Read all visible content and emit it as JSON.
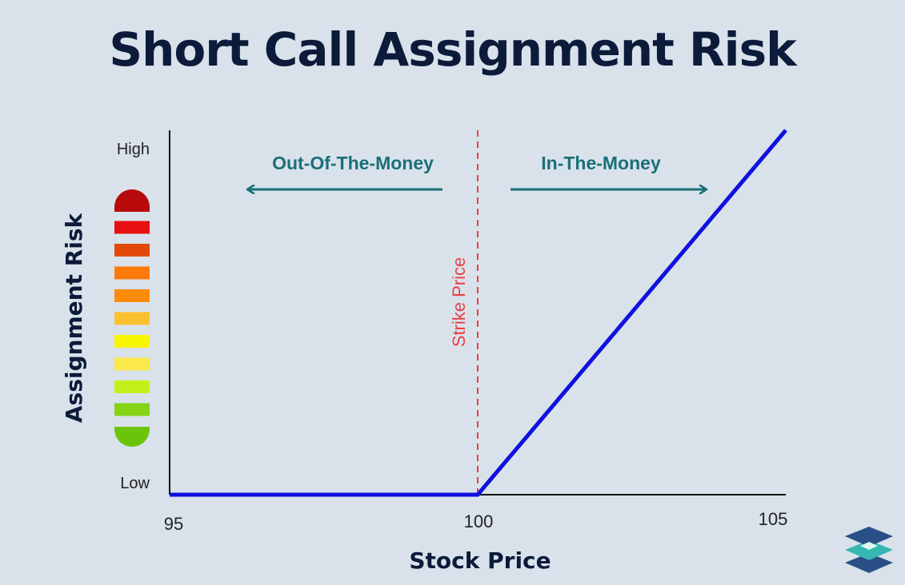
{
  "title": "Short Call Assignment Risk",
  "chart_data": {
    "type": "line",
    "title": "Short Call Assignment Risk",
    "xlabel": "Stock Price",
    "ylabel": "Assignment Risk",
    "xlim": [
      95,
      105
    ],
    "ylim": [
      0,
      1
    ],
    "x_ticks": [
      "95",
      "100",
      "105"
    ],
    "y_tick_labels": {
      "top": "High",
      "bottom": "Low"
    },
    "series": [
      {
        "points": [
          [
            95,
            0
          ],
          [
            100,
            0
          ],
          [
            105,
            1
          ]
        ],
        "color": "#1010e0"
      }
    ],
    "strike": {
      "x": 100,
      "label": "Strike Price",
      "color": "#e84040"
    },
    "annotations": [
      {
        "text": "Out-Of-The-Money",
        "direction": "left",
        "color": "#1b6f78"
      },
      {
        "text": "In-The-Money",
        "direction": "right",
        "color": "#1b6f78"
      }
    ],
    "risk_scale_colors": [
      "#b80a0a",
      "#e61010",
      "#e24a0a",
      "#fb7a0a",
      "#fb8c0a",
      "#fbc02e",
      "#f8f500",
      "#fbe84a",
      "#c2f01a",
      "#86d418",
      "#6cc40a"
    ],
    "grid": false
  }
}
